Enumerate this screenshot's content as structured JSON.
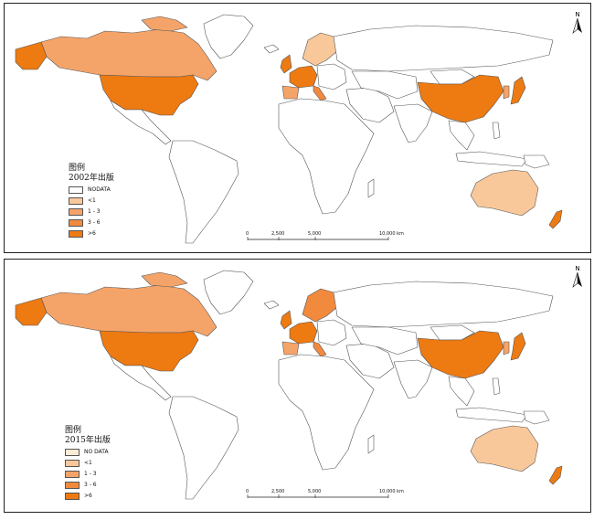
{
  "maps": [
    {
      "legend_title": "图例",
      "legend_subtitle": "2002年出版",
      "legend_items": [
        {
          "label": "NODATA",
          "color": "#ffffff"
        },
        {
          "label": "<1",
          "color": "#f9c89a"
        },
        {
          "label": "1 - 3",
          "color": "#f5a469"
        },
        {
          "label": "3 - 6",
          "color": "#f28a3d"
        },
        {
          "label": ">6",
          "color": "#ee7a12"
        }
      ],
      "scale_labels": [
        "0",
        "2,500",
        "5,000",
        "10,000 km"
      ],
      "north_label": "N"
    },
    {
      "legend_title": "图例",
      "legend_subtitle": "2015年出版",
      "legend_items": [
        {
          "label": "NO DATA",
          "color": "#fdebd6"
        },
        {
          "label": "<1",
          "color": "#f9c89a"
        },
        {
          "label": "1 - 3",
          "color": "#f5a469"
        },
        {
          "label": "3 - 6",
          "color": "#f28a3d"
        },
        {
          "label": ">6",
          "color": "#ee7a12"
        }
      ],
      "scale_labels": [
        "0",
        "2,500",
        "5,000",
        "10,000 km"
      ],
      "north_label": "N"
    }
  ],
  "colors": {
    "outline": "#555555",
    "land_default": "#ffffff",
    "class_lt1": "#f9c89a",
    "class_1_3": "#f5a469",
    "class_3_6": "#f28a3d",
    "class_gt6": "#ee7a12"
  }
}
